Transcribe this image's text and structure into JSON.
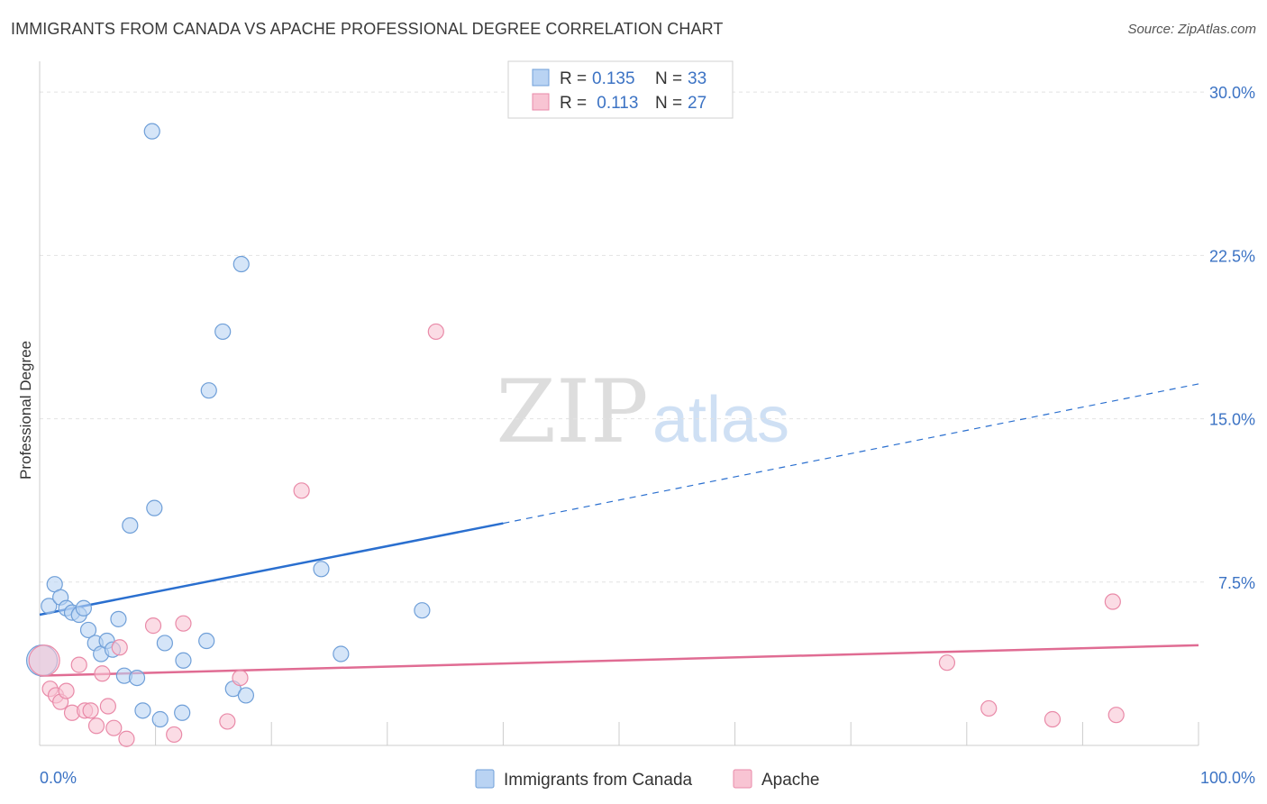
{
  "header": {
    "title": "IMMIGRANTS FROM CANADA VS APACHE PROFESSIONAL DEGREE CORRELATION CHART",
    "source": "Source: ZipAtlas.com"
  },
  "watermark": {
    "zip": "ZIP",
    "atlas": "atlas"
  },
  "colors": {
    "blue_fill": "#b9d3f3",
    "blue_stroke": "#6f9fd8",
    "blue_line": "#2a6fcf",
    "pink_fill": "#f8c4d3",
    "pink_stroke": "#e98aa8",
    "pink_line": "#e06c93",
    "tick_label": "#3c73c4",
    "grid": "#e2e2e2",
    "axis": "#cccccc"
  },
  "legend_box": {
    "rows": [
      {
        "r_label": "R = ",
        "r_value": "0.135",
        "n_label": "N = ",
        "n_value": "33"
      },
      {
        "r_label": "R = ",
        "r_value": " 0.113",
        "n_label": "N = ",
        "n_value": "27"
      }
    ]
  },
  "chart_data": {
    "type": "scatter",
    "title": "IMMIGRANTS FROM CANADA VS APACHE PROFESSIONAL DEGREE CORRELATION CHART",
    "ylabel": "Professional Degree",
    "xlabel": "",
    "xlim": [
      0,
      100
    ],
    "ylim": [
      0,
      31
    ],
    "x_tick_labels": [
      {
        "value": 0,
        "label": "0.0%"
      },
      {
        "value": 100,
        "label": "100.0%"
      }
    ],
    "y_tick_labels": [
      {
        "value": 7.5,
        "label": "7.5%"
      },
      {
        "value": 15.0,
        "label": "15.0%"
      },
      {
        "value": 22.5,
        "label": "22.5%"
      },
      {
        "value": 30.0,
        "label": "30.0%"
      }
    ],
    "x_minor_ticks": [
      0,
      10,
      20,
      30,
      40,
      50,
      60,
      70,
      80,
      90,
      100
    ],
    "grid": true,
    "legend_position": "bottom-center",
    "series": [
      {
        "name": "Immigrants from Canada",
        "color": "#b9d3f3",
        "points": [
          {
            "x": 0.2,
            "y": 3.9,
            "size": "large"
          },
          {
            "x": 0.8,
            "y": 6.4
          },
          {
            "x": 1.3,
            "y": 7.4
          },
          {
            "x": 1.8,
            "y": 6.8
          },
          {
            "x": 2.3,
            "y": 6.3
          },
          {
            "x": 2.8,
            "y": 6.1
          },
          {
            "x": 3.4,
            "y": 6.0
          },
          {
            "x": 3.8,
            "y": 6.3
          },
          {
            "x": 4.2,
            "y": 5.3
          },
          {
            "x": 4.8,
            "y": 4.7
          },
          {
            "x": 5.3,
            "y": 4.2
          },
          {
            "x": 5.8,
            "y": 4.8
          },
          {
            "x": 6.3,
            "y": 4.4
          },
          {
            "x": 6.8,
            "y": 5.8
          },
          {
            "x": 7.3,
            "y": 3.2
          },
          {
            "x": 7.8,
            "y": 10.1
          },
          {
            "x": 8.4,
            "y": 3.1
          },
          {
            "x": 8.9,
            "y": 1.6
          },
          {
            "x": 9.7,
            "y": 28.2
          },
          {
            "x": 9.9,
            "y": 10.9
          },
          {
            "x": 10.4,
            "y": 1.2
          },
          {
            "x": 10.8,
            "y": 4.7
          },
          {
            "x": 12.3,
            "y": 1.5
          },
          {
            "x": 12.4,
            "y": 3.9
          },
          {
            "x": 14.4,
            "y": 4.8
          },
          {
            "x": 14.6,
            "y": 16.3
          },
          {
            "x": 15.8,
            "y": 19.0
          },
          {
            "x": 16.7,
            "y": 2.6
          },
          {
            "x": 17.4,
            "y": 22.1
          },
          {
            "x": 17.8,
            "y": 2.3
          },
          {
            "x": 24.3,
            "y": 8.1
          },
          {
            "x": 26.0,
            "y": 4.2
          },
          {
            "x": 33.0,
            "y": 6.2
          }
        ],
        "trend": {
          "x0": 0,
          "y0": 6.0,
          "x1": 40.0,
          "y1": 10.2,
          "dash_to_x": 100,
          "dash_to_y": 16.6
        }
      },
      {
        "name": "Apache",
        "color": "#f8c4d3",
        "points": [
          {
            "x": 0.4,
            "y": 3.9,
            "size": "large"
          },
          {
            "x": 0.9,
            "y": 2.6
          },
          {
            "x": 1.4,
            "y": 2.3
          },
          {
            "x": 1.8,
            "y": 2.0
          },
          {
            "x": 2.3,
            "y": 2.5
          },
          {
            "x": 2.8,
            "y": 1.5
          },
          {
            "x": 3.4,
            "y": 3.7
          },
          {
            "x": 3.9,
            "y": 1.6
          },
          {
            "x": 4.4,
            "y": 1.6
          },
          {
            "x": 4.9,
            "y": 0.9
          },
          {
            "x": 5.4,
            "y": 3.3
          },
          {
            "x": 5.9,
            "y": 1.8
          },
          {
            "x": 6.4,
            "y": 0.8
          },
          {
            "x": 6.9,
            "y": 4.5
          },
          {
            "x": 7.5,
            "y": 0.3
          },
          {
            "x": 9.8,
            "y": 5.5
          },
          {
            "x": 11.6,
            "y": 0.5
          },
          {
            "x": 12.4,
            "y": 5.6
          },
          {
            "x": 16.2,
            "y": 1.1
          },
          {
            "x": 17.3,
            "y": 3.1
          },
          {
            "x": 22.6,
            "y": 11.7
          },
          {
            "x": 34.2,
            "y": 19.0
          },
          {
            "x": 78.3,
            "y": 3.8
          },
          {
            "x": 81.9,
            "y": 1.7
          },
          {
            "x": 87.4,
            "y": 1.2
          },
          {
            "x": 92.6,
            "y": 6.6
          },
          {
            "x": 92.9,
            "y": 1.4
          }
        ],
        "trend": {
          "x0": 0,
          "y0": 3.2,
          "x1": 100,
          "y1": 4.6
        }
      }
    ]
  }
}
